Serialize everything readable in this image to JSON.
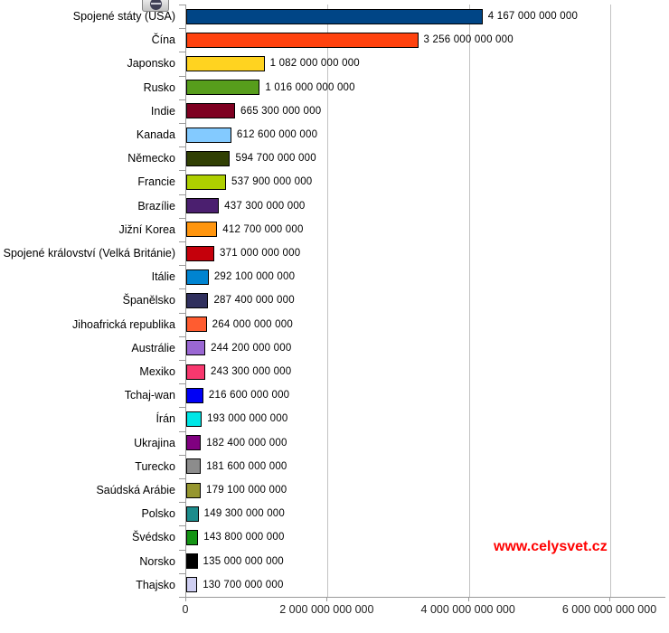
{
  "watermark": {
    "text": "www.celysvet.cz",
    "color": "#ff0000"
  },
  "toolbar": {
    "icon": "globe-icon"
  },
  "axis_colors": {
    "axis_line": "#9a9a9a",
    "gridline": "#c2c2c2",
    "bar_border": "#000000"
  },
  "chart_data": {
    "type": "bar",
    "orientation": "horizontal",
    "title": "",
    "xlabel": "",
    "ylabel": "",
    "grid": true,
    "legend": false,
    "categories": [
      "Spojené státy (USA)",
      "Čína",
      "Japonsko",
      "Rusko",
      "Indie",
      "Kanada",
      "Německo",
      "Francie",
      "Brazílie",
      "Jižní Korea",
      "Spojené království (Velká Británie)",
      "Itálie",
      "Španělsko",
      "Jihoafrická republika",
      "Austrálie",
      "Mexiko",
      "Tchaj-wan",
      "Írán",
      "Ukrajina",
      "Turecko",
      "Saúdská Arábie",
      "Polsko",
      "Švédsko",
      "Norsko",
      "Thajsko"
    ],
    "values": [
      4167000000000,
      3256000000000,
      1082000000000,
      1016000000000,
      665300000000,
      612600000000,
      594700000000,
      537900000000,
      437300000000,
      412700000000,
      371000000000,
      292100000000,
      287400000000,
      264000000000,
      244200000000,
      243300000000,
      216600000000,
      193000000000,
      182400000000,
      181600000000,
      179100000000,
      149300000000,
      143800000000,
      135000000000,
      130700000000
    ],
    "value_labels": [
      "4 167 000 000 000",
      "3 256 000 000 000",
      "1 082 000 000 000",
      "1 016 000 000 000",
      "665 300 000 000",
      "612 600 000 000",
      "594 700 000 000",
      "537 900 000 000",
      "437 300 000 000",
      "412 700 000 000",
      "371 000 000 000",
      "292 100 000 000",
      "287 400 000 000",
      "264 000 000 000",
      "244 200 000 000",
      "243 300 000 000",
      "216 600 000 000",
      "193 000 000 000",
      "182 400 000 000",
      "181 600 000 000",
      "179 100 000 000",
      "149 300 000 000",
      "143 800 000 000",
      "135 000 000 000",
      "130 700 000 000"
    ],
    "colors": [
      "#004586",
      "#FF420E",
      "#FFD320",
      "#579D1C",
      "#7E0021",
      "#83CAFF",
      "#314004",
      "#AECF00",
      "#4B1F6F",
      "#FF950E",
      "#C5000B",
      "#0084D1",
      "#30305E",
      "#FF5C30",
      "#9A67D3",
      "#F8386E",
      "#0000F5",
      "#00E6E6",
      "#800080",
      "#8C8C8C",
      "#96962E",
      "#1C8C8C",
      "#149414",
      "#000000",
      "#CFCFF2"
    ],
    "x_axis": {
      "min": 0,
      "max": 6780000000000,
      "ticks": [
        {
          "value": 0,
          "label": "0"
        },
        {
          "value": 2000000000000,
          "label": "2 000 000 000 000"
        },
        {
          "value": 4000000000000,
          "label": "4 000 000 000 000"
        },
        {
          "value": 6000000000000,
          "label": "6 000 000 000 000"
        }
      ]
    }
  }
}
